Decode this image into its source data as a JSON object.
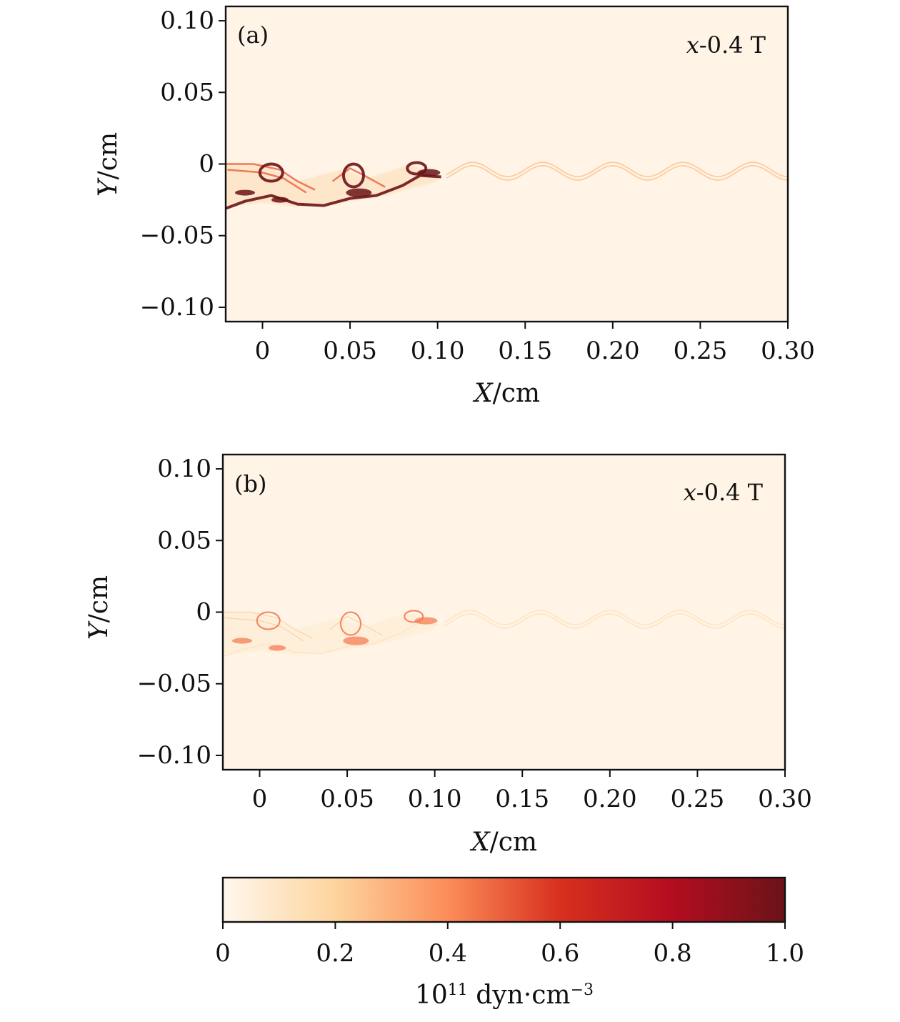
{
  "chart_data": {
    "type": "heatmap",
    "panels": [
      {
        "id": "a",
        "panel_label": "(a)",
        "annotation_var": "x",
        "annotation_rest": "-0.4 T",
        "xlabel_var": "X",
        "xlabel_unit": "/cm",
        "ylabel_var": "Y",
        "ylabel_unit": "/cm",
        "xlim": [
          -0.021,
          0.3
        ],
        "ylim": [
          -0.11,
          0.11
        ],
        "xticks": [
          0,
          0.05,
          0.1,
          0.15,
          0.2,
          0.25,
          0.3
        ],
        "xtick_labels": [
          "0",
          "0.05",
          "0.10",
          "0.15",
          "0.20",
          "0.25",
          "0.30"
        ],
        "yticks": [
          0.1,
          0.05,
          0,
          -0.05,
          -0.1
        ],
        "ytick_labels": [
          "0.10",
          "0.05",
          "0",
          "−0.05",
          "−0.10"
        ],
        "features": [
          {
            "kind": "interface-wave",
            "x_start": 0.105,
            "x_end": 0.3,
            "wavelength": 0.04,
            "y_center": -0.005,
            "amplitude": 0.005,
            "intensity": 0.25
          },
          {
            "kind": "mixing-band",
            "x_start": -0.021,
            "x_end": 0.105,
            "intensity": 1.0
          }
        ]
      },
      {
        "id": "b",
        "panel_label": "(b)",
        "annotation_var": "x",
        "annotation_rest": "-0.4 T",
        "xlabel_var": "X",
        "xlabel_unit": "/cm",
        "ylabel_var": "Y",
        "ylabel_unit": "/cm",
        "xlim": [
          -0.021,
          0.3
        ],
        "ylim": [
          -0.11,
          0.11
        ],
        "xticks": [
          0,
          0.05,
          0.1,
          0.15,
          0.2,
          0.25,
          0.3
        ],
        "xtick_labels": [
          "0",
          "0.05",
          "0.10",
          "0.15",
          "0.20",
          "0.25",
          "0.30"
        ],
        "yticks": [
          0.1,
          0.05,
          0,
          -0.05,
          -0.1
        ],
        "ytick_labels": [
          "0.10",
          "0.05",
          "0",
          "−0.05",
          "−0.10"
        ],
        "features": [
          {
            "kind": "interface-wave",
            "x_start": 0.105,
            "x_end": 0.3,
            "wavelength": 0.04,
            "y_center": -0.005,
            "amplitude": 0.005,
            "intensity": 0.12
          },
          {
            "kind": "mixing-band",
            "x_start": -0.021,
            "x_end": 0.105,
            "intensity": 0.45
          }
        ]
      }
    ],
    "colorbar": {
      "range": [
        0,
        1.0
      ],
      "ticks": [
        0,
        0.2,
        0.4,
        0.6,
        0.8,
        1.0
      ],
      "tick_labels": [
        "0",
        "0.2",
        "0.4",
        "0.6",
        "0.8",
        "1.0"
      ],
      "label_base": "10",
      "label_exp": "11",
      "label_unit": " dyn·cm",
      "label_unit_exp": "−3",
      "colors": [
        "#fff7ec",
        "#fdd49e",
        "#fc8d59",
        "#d7301f",
        "#b30d20",
        "#6b1318"
      ]
    }
  }
}
